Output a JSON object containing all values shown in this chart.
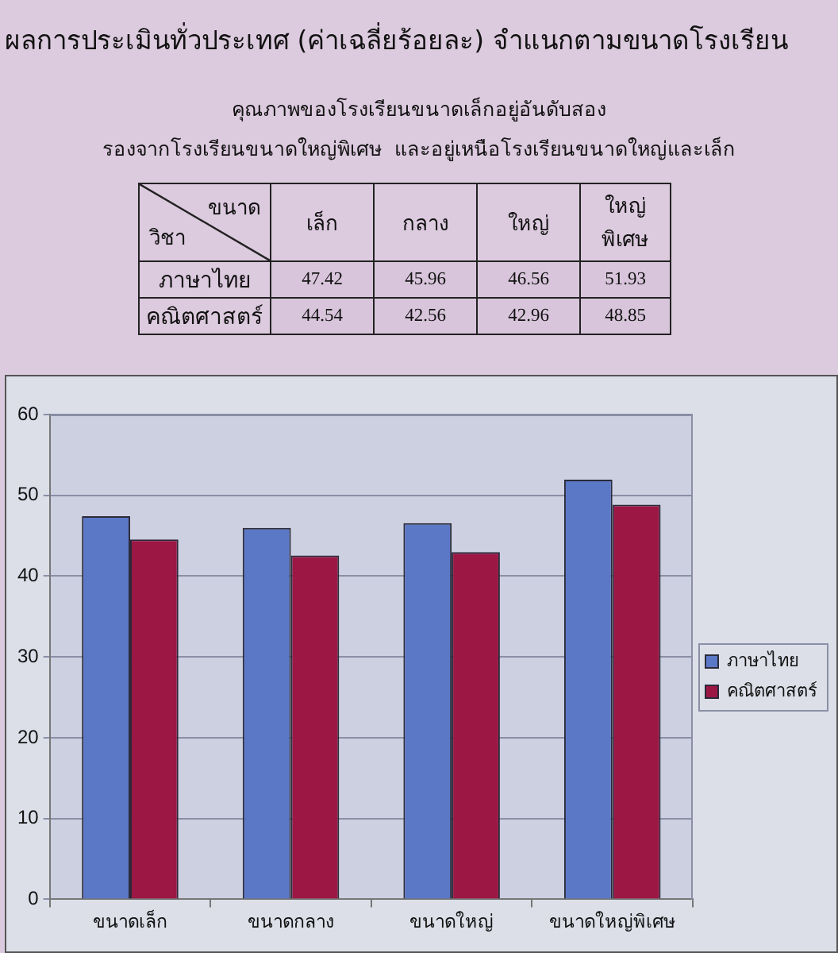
{
  "chart_data": [
    {
      "type": "heatmap",
      "title": "ผลการประเมินทั่วประเทศ (ค่าเฉลี่ยร้อยละ) จำแนกตามขนาดโรงเรียน",
      "subtitle": "คุณภาพของโรงเรียนขนาดเล็กอยู่อันดับสอง\nรองจากโรงเรียนขนาดใหญ่พิเศษ  และอยู่เหนือโรงเรียนขนาดใหญ่และเล็ก",
      "xlabel": "ขนาด",
      "ylabel": "วิชา",
      "categories": [
        "เล็ก",
        "กลาง",
        "ใหญ่",
        "ใหญ่พิเศษ"
      ],
      "y_categories": [
        "ภาษาไทย",
        "คณิตศาสตร์"
      ],
      "cells": [
        [
          47.42,
          45.96,
          46.56,
          51.93
        ],
        [
          44.54,
          42.56,
          42.96,
          48.85
        ]
      ],
      "data_labels": true
    },
    {
      "type": "bar",
      "categories": [
        "ขนาดเล็ก",
        "ขนาดกลาง",
        "ขนาดใหญ่",
        "ขนาดใหญ่พิเศษ"
      ],
      "series": [
        {
          "name": "ภาษาไทย",
          "color": "#5b78c6",
          "values": [
            47.42,
            45.96,
            46.56,
            51.93
          ]
        },
        {
          "name": "คณิตศาสตร์",
          "color": "#9c1744",
          "values": [
            44.54,
            42.56,
            42.96,
            48.85
          ]
        }
      ],
      "ylim": [
        0,
        60
      ],
      "yticks": [
        0,
        10,
        20,
        30,
        40,
        50,
        60
      ],
      "grid": "y",
      "legend": "right"
    }
  ]
}
